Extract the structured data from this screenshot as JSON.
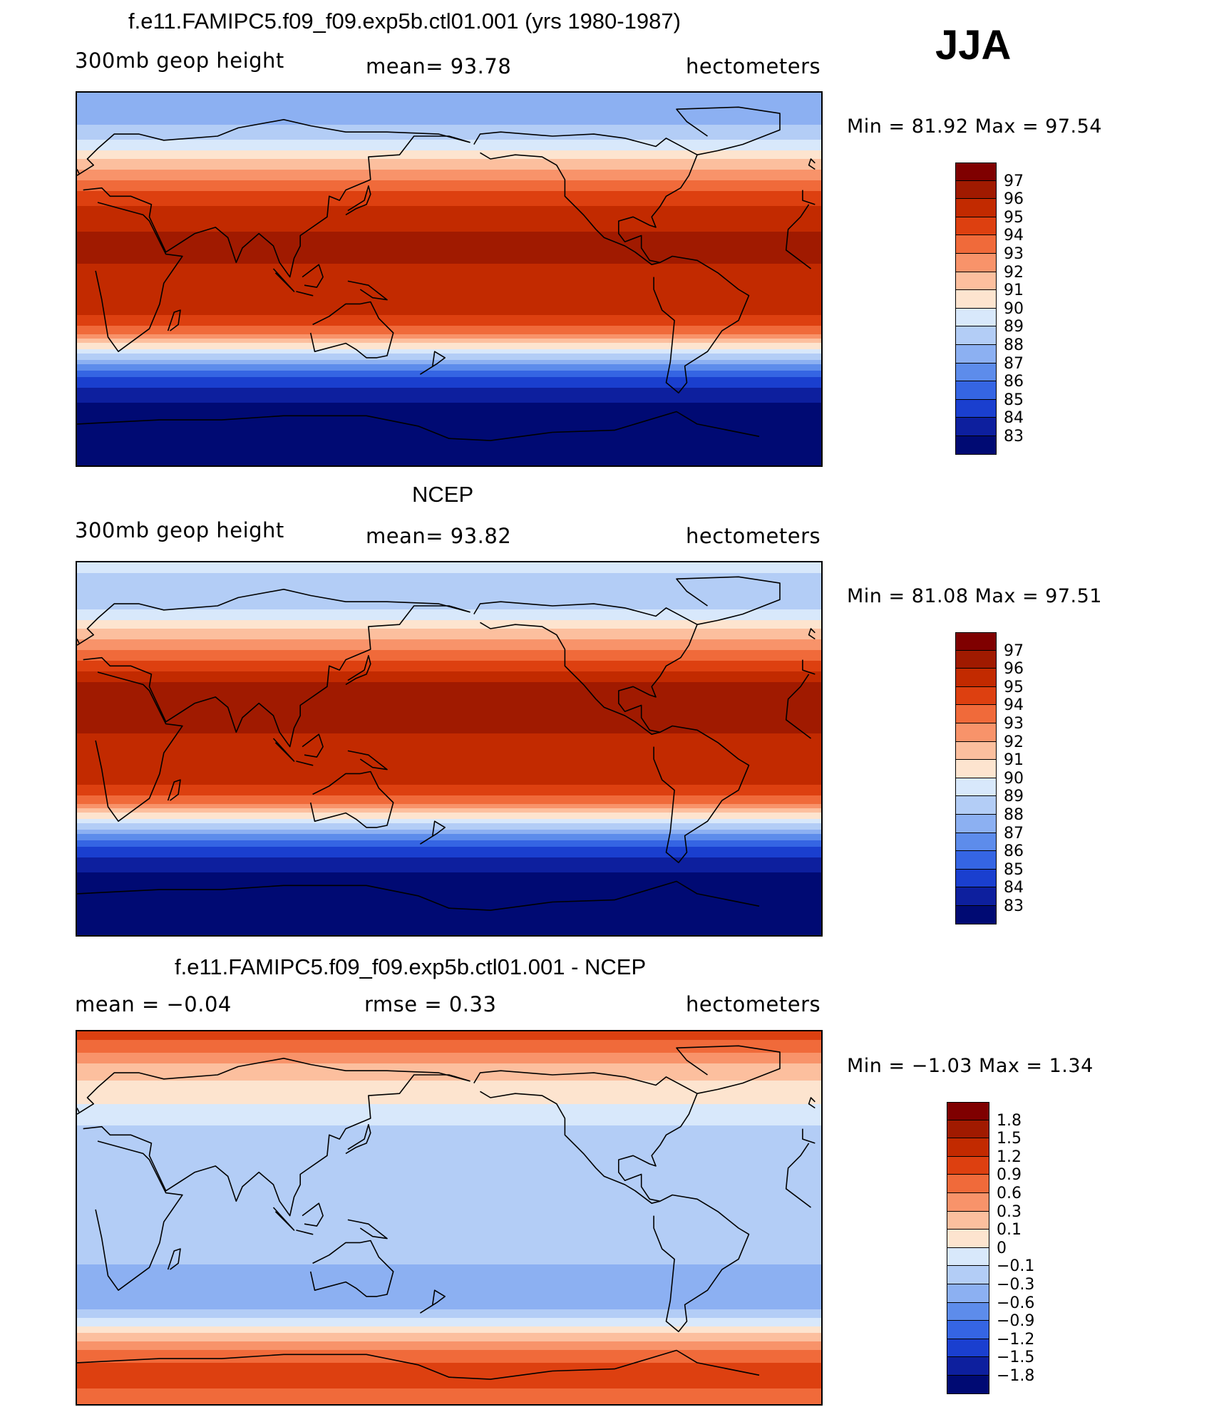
{
  "season": "JJA",
  "panels": [
    {
      "title": "f.e11.FAMIPC5.f09_f09.exp5b.ctl01.001 (yrs 1980-1987)",
      "left_label": "300mb  geop  height",
      "center_label": "mean=   93.78",
      "right_label": "hectometers",
      "minmax": "Min  =    81.92  Max  =    97.54",
      "legend_labels": [
        "97",
        "96",
        "95",
        "94",
        "93",
        "92",
        "91",
        "90",
        "89",
        "88",
        "87",
        "86",
        "85",
        "84",
        "83"
      ],
      "legend_colors": [
        "#7f0000",
        "#a01a00",
        "#c22a00",
        "#dd4010",
        "#f06a3a",
        "#f8936a",
        "#fcbf9e",
        "#fde4cf",
        "#d8e8fb",
        "#b3cdf6",
        "#8cb0f2",
        "#5d8ceb",
        "#3565e3",
        "#1a3fcf",
        "#0d1f9e",
        "#000a73"
      ],
      "bands": [
        {
          "lat": 90,
          "level": 5
        },
        {
          "lat": 80,
          "level": 5
        },
        {
          "lat": 70,
          "level": 6
        },
        {
          "lat": 60,
          "level": 8
        },
        {
          "lat": 50,
          "level": 10
        },
        {
          "lat": 40,
          "level": 12
        },
        {
          "lat": 30,
          "level": 13
        },
        {
          "lat": 15,
          "level": 14
        },
        {
          "lat": 0,
          "level": 13
        },
        {
          "lat": -15,
          "level": 13
        },
        {
          "lat": -25,
          "level": 11
        },
        {
          "lat": -30,
          "level": 9
        },
        {
          "lat": -35,
          "level": 7
        },
        {
          "lat": -40,
          "level": 5
        },
        {
          "lat": -45,
          "level": 3
        },
        {
          "lat": -55,
          "level": 1
        },
        {
          "lat": -65,
          "level": 0
        },
        {
          "lat": -90,
          "level": 0
        }
      ]
    },
    {
      "title": "NCEP",
      "left_label": "300mb  geop  height",
      "center_label": "mean=   93.82",
      "right_label": "hectometers",
      "minmax": "Min  =    81.08  Max  =    97.51",
      "legend_labels": [
        "97",
        "96",
        "95",
        "94",
        "93",
        "92",
        "91",
        "90",
        "89",
        "88",
        "87",
        "86",
        "85",
        "84",
        "83"
      ],
      "legend_colors": [
        "#7f0000",
        "#a01a00",
        "#c22a00",
        "#dd4010",
        "#f06a3a",
        "#f8936a",
        "#fcbf9e",
        "#fde4cf",
        "#d8e8fb",
        "#b3cdf6",
        "#8cb0f2",
        "#5d8ceb",
        "#3565e3",
        "#1a3fcf",
        "#0d1f9e",
        "#000a73"
      ],
      "bands": [
        {
          "lat": 90,
          "level": 7
        },
        {
          "lat": 80,
          "level": 6
        },
        {
          "lat": 70,
          "level": 6
        },
        {
          "lat": 60,
          "level": 8
        },
        {
          "lat": 50,
          "level": 10
        },
        {
          "lat": 40,
          "level": 12
        },
        {
          "lat": 30,
          "level": 14
        },
        {
          "lat": 15,
          "level": 14
        },
        {
          "lat": 0,
          "level": 13
        },
        {
          "lat": -15,
          "level": 13
        },
        {
          "lat": -25,
          "level": 11
        },
        {
          "lat": -30,
          "level": 9
        },
        {
          "lat": -35,
          "level": 7
        },
        {
          "lat": -40,
          "level": 5
        },
        {
          "lat": -45,
          "level": 3
        },
        {
          "lat": -55,
          "level": 1
        },
        {
          "lat": -65,
          "level": 0
        },
        {
          "lat": -90,
          "level": 0
        }
      ]
    },
    {
      "title": "f.e11.FAMIPC5.f09_f09.exp5b.ctl01.001 - NCEP",
      "left_label": "mean  =    −0.04",
      "center_label": "rmse  =     0.33",
      "right_label": "hectometers",
      "minmax": "Min  =    −1.03  Max  =      1.34",
      "legend_labels": [
        "1.8",
        "1.5",
        "1.2",
        "0.9",
        "0.6",
        "0.3",
        "0.1",
        "0",
        "−0.1",
        "−0.3",
        "−0.6",
        "−0.9",
        "−1.2",
        "−1.5",
        "−1.8"
      ],
      "legend_colors": [
        "#7f0000",
        "#a01a00",
        "#c22a00",
        "#dd4010",
        "#f06a3a",
        "#f8936a",
        "#fcbf9e",
        "#fde4cf",
        "#d8e8fb",
        "#b3cdf6",
        "#8cb0f2",
        "#5d8ceb",
        "#3565e3",
        "#1a3fcf",
        "#0d1f9e",
        "#000a73"
      ],
      "bands": [
        {
          "lat": 90,
          "level": 12
        },
        {
          "lat": 82,
          "level": 11
        },
        {
          "lat": 72,
          "level": 9
        },
        {
          "lat": 60,
          "level": 8
        },
        {
          "lat": 50,
          "level": 7
        },
        {
          "lat": 40,
          "level": 6
        },
        {
          "lat": 30,
          "level": 6
        },
        {
          "lat": 15,
          "level": 6
        },
        {
          "lat": 0,
          "level": 6
        },
        {
          "lat": -15,
          "level": 6
        },
        {
          "lat": -30,
          "level": 5
        },
        {
          "lat": -42,
          "level": 5
        },
        {
          "lat": -50,
          "level": 7
        },
        {
          "lat": -58,
          "level": 9
        },
        {
          "lat": -66,
          "level": 11
        },
        {
          "lat": -75,
          "level": 12
        },
        {
          "lat": -90,
          "level": 11
        }
      ]
    }
  ]
}
